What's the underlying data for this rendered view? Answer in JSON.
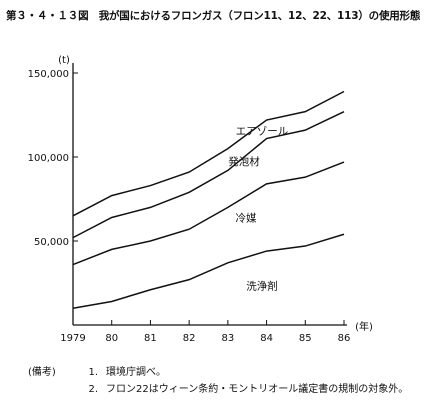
{
  "title": "第３・４・１３図　我が国におけるフロンガス（フロン11、12、22、113）の使用形態",
  "chart_data": {
    "type": "area",
    "unit_label": "(t)",
    "x": [
      1979,
      1980,
      1981,
      1982,
      1983,
      1984,
      1985,
      1986
    ],
    "x_tick_labels": [
      "1979",
      "80",
      "81",
      "82",
      "83",
      "84",
      "85",
      "86"
    ],
    "x_unit_label": "(年)",
    "ylim": [
      0,
      150000
    ],
    "y_ticks": [
      50000,
      100000,
      150000
    ],
    "y_tick_labels": [
      "50,000",
      "100,000",
      "150,000"
    ],
    "stacked": true,
    "series": [
      {
        "name": "洗浄剤",
        "cumulative": [
          10000,
          14000,
          21000,
          27000,
          37000,
          44000,
          47000,
          54000
        ]
      },
      {
        "name": "冷媒",
        "cumulative": [
          36000,
          45000,
          50000,
          57000,
          70000,
          84000,
          88000,
          97000
        ]
      },
      {
        "name": "発泡材",
        "cumulative": [
          52000,
          64000,
          70000,
          79000,
          92000,
          111000,
          116000,
          127000
        ]
      },
      {
        "name": "エアゾール",
        "cumulative": [
          65000,
          77000,
          83000,
          91000,
          105000,
          122000,
          127000,
          139000
        ]
      }
    ],
    "grid": false
  },
  "notes": {
    "label": "(備考)",
    "items": [
      {
        "num": "1.",
        "text": "環境庁調べ。"
      },
      {
        "num": "2.",
        "text": "フロン22はウィーン条約・モントリオール議定書の規制の対象外。"
      }
    ]
  }
}
